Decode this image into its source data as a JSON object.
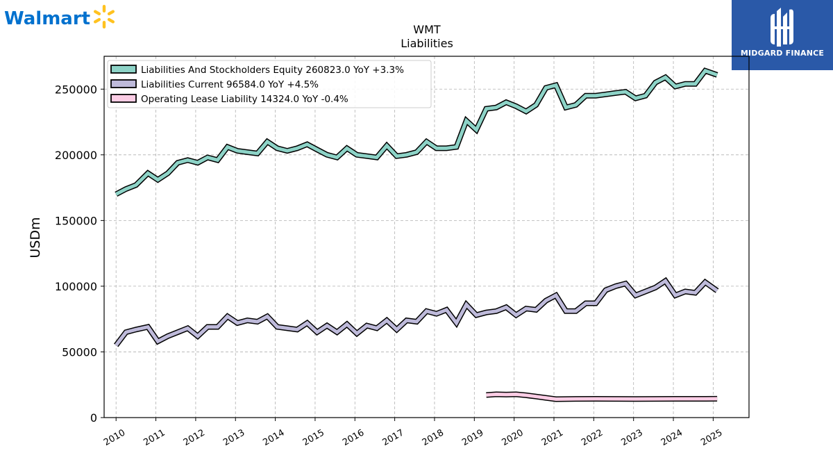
{
  "logos": {
    "left_brand": "Walmart",
    "right_brand": "MIDGARD FINANCE",
    "left_brand_color": "#0071ce",
    "spark_color": "#ffc220",
    "right_bg_color": "#2a59a8"
  },
  "chart_data": {
    "type": "line",
    "title": "WMT",
    "subtitle": "Liabilities",
    "xlabel": "",
    "ylabel": "USDm",
    "ylim": [
      0,
      275000
    ],
    "yticks": [
      0,
      50000,
      100000,
      150000,
      200000,
      250000
    ],
    "xlim": [
      2009.7,
      2025.9
    ],
    "xticks": [
      "2010",
      "2011",
      "2012",
      "2013",
      "2014",
      "2015",
      "2016",
      "2017",
      "2018",
      "2019",
      "2020",
      "2021",
      "2022",
      "2023",
      "2024",
      "2025"
    ],
    "grid": true,
    "legend_position": "top-left",
    "series": [
      {
        "name": "Liabilities And Stockholders Equity",
        "legend_label": "Liabilities And Stockholders Equity  260823.0 YoY +3.3%",
        "color": "#8dd3c7",
        "points": [
          [
            2010.0,
            170000
          ],
          [
            2010.25,
            174000
          ],
          [
            2010.5,
            177000
          ],
          [
            2010.8,
            186000
          ],
          [
            2011.05,
            181000
          ],
          [
            2011.3,
            186000
          ],
          [
            2011.55,
            194000
          ],
          [
            2011.8,
            196000
          ],
          [
            2012.05,
            194000
          ],
          [
            2012.3,
            198000
          ],
          [
            2012.55,
            196000
          ],
          [
            2012.8,
            206000
          ],
          [
            2013.05,
            203000
          ],
          [
            2013.3,
            202000
          ],
          [
            2013.55,
            201000
          ],
          [
            2013.8,
            210000
          ],
          [
            2014.05,
            205000
          ],
          [
            2014.3,
            203000
          ],
          [
            2014.55,
            205000
          ],
          [
            2014.8,
            208000
          ],
          [
            2015.05,
            204000
          ],
          [
            2015.3,
            200000
          ],
          [
            2015.55,
            198000
          ],
          [
            2015.8,
            205000
          ],
          [
            2016.05,
            200000
          ],
          [
            2016.3,
            199000
          ],
          [
            2016.55,
            198000
          ],
          [
            2016.8,
            207000
          ],
          [
            2017.05,
            199000
          ],
          [
            2017.3,
            200000
          ],
          [
            2017.55,
            202000
          ],
          [
            2017.8,
            210000
          ],
          [
            2018.05,
            205000
          ],
          [
            2018.3,
            205000
          ],
          [
            2018.55,
            206000
          ],
          [
            2018.8,
            226000
          ],
          [
            2019.05,
            219000
          ],
          [
            2019.3,
            235000
          ],
          [
            2019.55,
            236000
          ],
          [
            2019.8,
            240000
          ],
          [
            2020.05,
            237000
          ],
          [
            2020.3,
            233000
          ],
          [
            2020.55,
            238000
          ],
          [
            2020.8,
            251000
          ],
          [
            2021.05,
            253000
          ],
          [
            2021.3,
            236000
          ],
          [
            2021.55,
            238000
          ],
          [
            2021.8,
            245000
          ],
          [
            2022.05,
            245000
          ],
          [
            2022.3,
            246000
          ],
          [
            2022.55,
            247000
          ],
          [
            2022.8,
            248000
          ],
          [
            2023.05,
            243000
          ],
          [
            2023.3,
            245000
          ],
          [
            2023.55,
            255000
          ],
          [
            2023.8,
            259000
          ],
          [
            2024.05,
            252000
          ],
          [
            2024.3,
            254000
          ],
          [
            2024.55,
            254000
          ],
          [
            2024.8,
            264000
          ],
          [
            2025.1,
            260823
          ]
        ]
      },
      {
        "name": "Liabilities Current",
        "legend_label": "Liabilities Current  96584.0 YoY +4.5%",
        "color": "#bebada",
        "points": [
          [
            2010.0,
            55000
          ],
          [
            2010.25,
            65000
          ],
          [
            2010.5,
            67000
          ],
          [
            2010.8,
            69000
          ],
          [
            2011.05,
            58000
          ],
          [
            2011.3,
            62000
          ],
          [
            2011.55,
            65000
          ],
          [
            2011.8,
            68000
          ],
          [
            2012.05,
            62000
          ],
          [
            2012.3,
            69000
          ],
          [
            2012.55,
            69000
          ],
          [
            2012.8,
            77000
          ],
          [
            2013.05,
            72000
          ],
          [
            2013.3,
            74000
          ],
          [
            2013.55,
            73000
          ],
          [
            2013.8,
            77000
          ],
          [
            2014.05,
            69000
          ],
          [
            2014.3,
            68000
          ],
          [
            2014.55,
            67000
          ],
          [
            2014.8,
            72000
          ],
          [
            2015.05,
            65000
          ],
          [
            2015.3,
            70000
          ],
          [
            2015.55,
            65000
          ],
          [
            2015.8,
            71000
          ],
          [
            2016.05,
            64000
          ],
          [
            2016.3,
            70000
          ],
          [
            2016.55,
            68000
          ],
          [
            2016.8,
            74000
          ],
          [
            2017.05,
            67000
          ],
          [
            2017.3,
            74000
          ],
          [
            2017.55,
            73000
          ],
          [
            2017.8,
            81000
          ],
          [
            2018.05,
            79000
          ],
          [
            2018.3,
            82000
          ],
          [
            2018.55,
            72000
          ],
          [
            2018.8,
            86000
          ],
          [
            2019.05,
            78000
          ],
          [
            2019.3,
            80000
          ],
          [
            2019.55,
            81000
          ],
          [
            2019.8,
            84000
          ],
          [
            2020.05,
            78000
          ],
          [
            2020.3,
            83000
          ],
          [
            2020.55,
            82000
          ],
          [
            2020.8,
            89000
          ],
          [
            2021.05,
            93000
          ],
          [
            2021.3,
            81000
          ],
          [
            2021.55,
            81000
          ],
          [
            2021.8,
            87000
          ],
          [
            2022.05,
            87000
          ],
          [
            2022.3,
            97000
          ],
          [
            2022.55,
            100000
          ],
          [
            2022.8,
            102000
          ],
          [
            2023.05,
            93000
          ],
          [
            2023.3,
            96000
          ],
          [
            2023.55,
            99000
          ],
          [
            2023.8,
            104000
          ],
          [
            2024.05,
            93000
          ],
          [
            2024.3,
            96000
          ],
          [
            2024.55,
            95000
          ],
          [
            2024.8,
            103000
          ],
          [
            2025.1,
            96584
          ]
        ]
      },
      {
        "name": "Operating Lease Liability",
        "legend_label": "Operating Lease Liability  14324.0 YoY -0.4%",
        "color": "#fccde5",
        "points": [
          [
            2019.3,
            17200
          ],
          [
            2019.55,
            17700
          ],
          [
            2019.8,
            17500
          ],
          [
            2020.05,
            17700
          ],
          [
            2020.3,
            17000
          ],
          [
            2020.55,
            16000
          ],
          [
            2020.8,
            15000
          ],
          [
            2021.05,
            14000
          ],
          [
            2021.55,
            14200
          ],
          [
            2022.05,
            14300
          ],
          [
            2022.55,
            14200
          ],
          [
            2023.05,
            14100
          ],
          [
            2023.55,
            14200
          ],
          [
            2024.05,
            14300
          ],
          [
            2024.55,
            14300
          ],
          [
            2025.1,
            14324
          ]
        ]
      }
    ]
  }
}
